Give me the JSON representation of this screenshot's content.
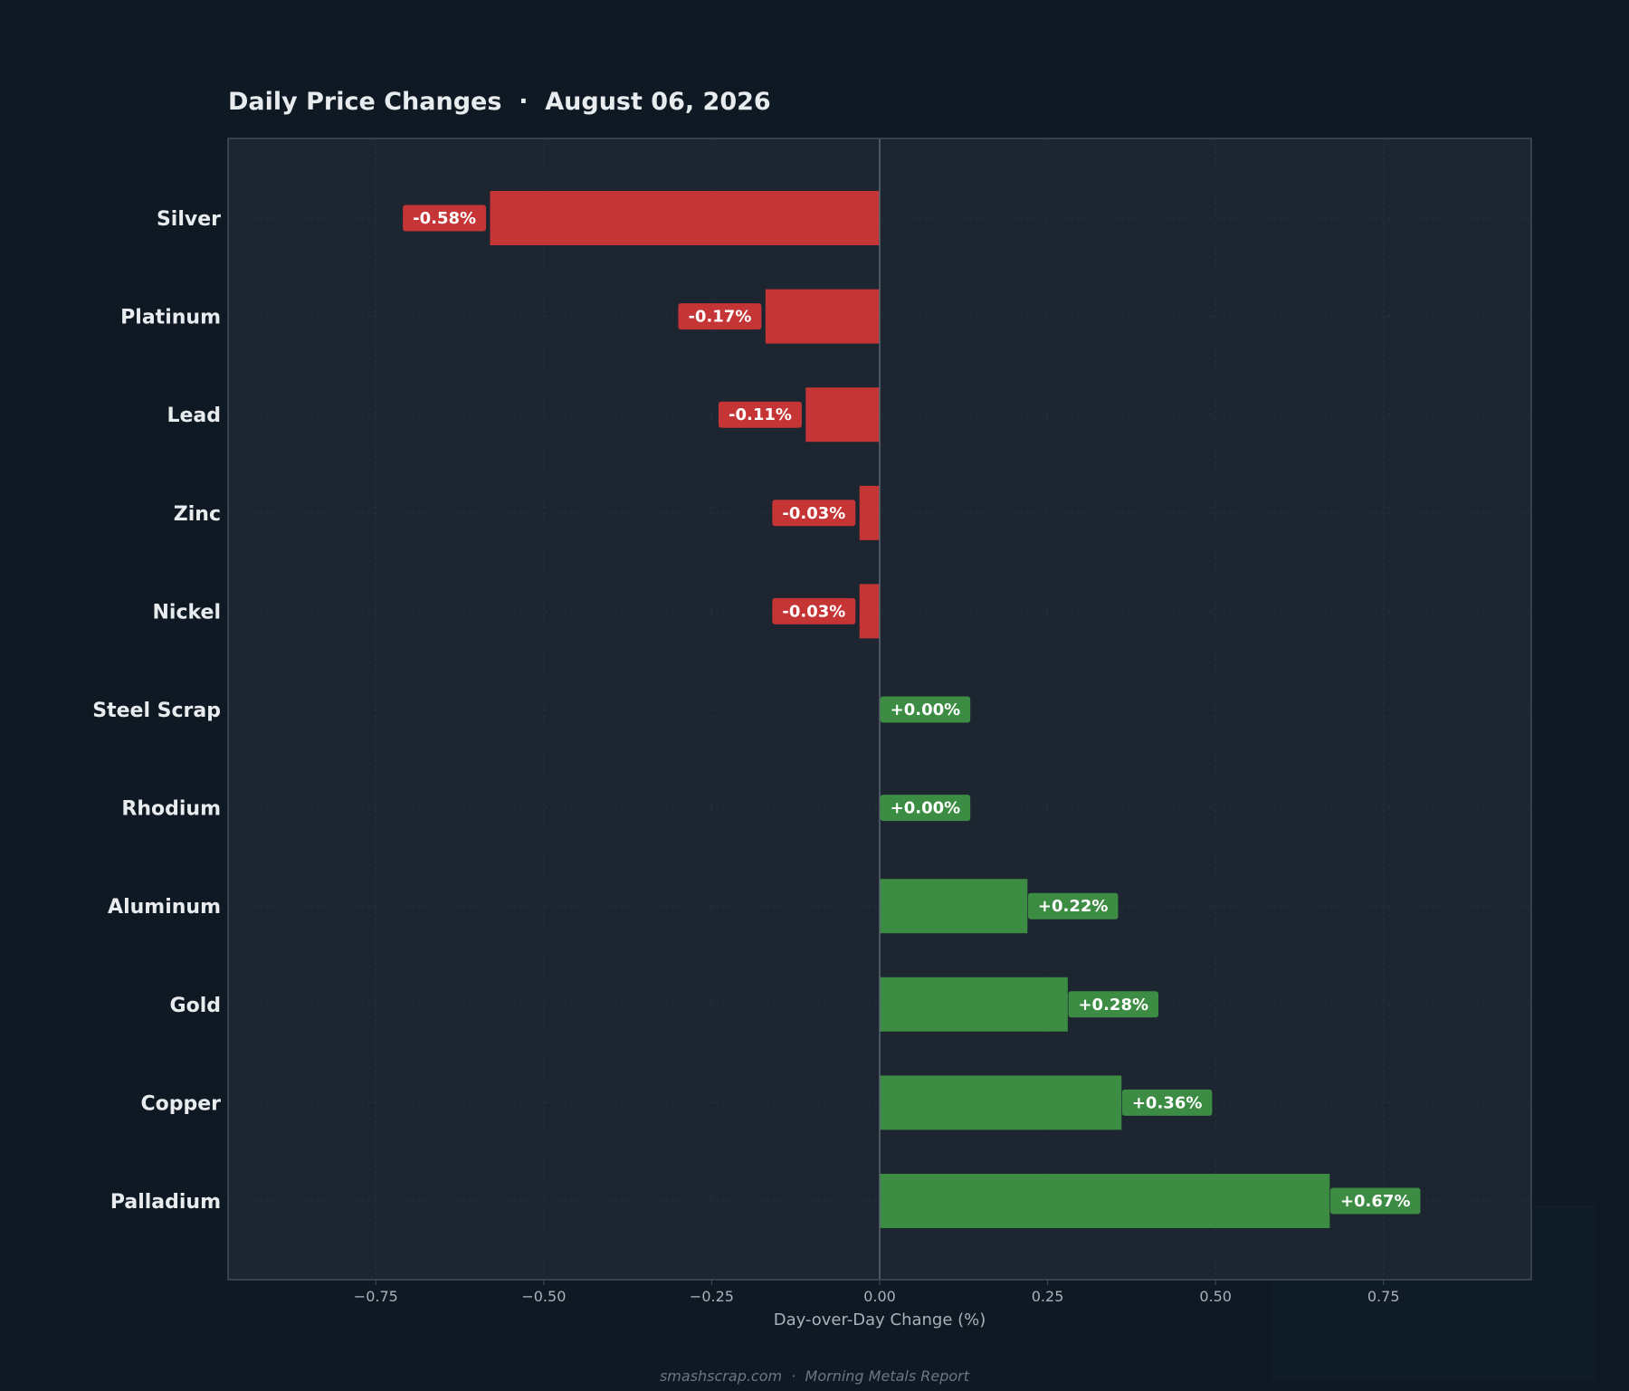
{
  "colors": {
    "background": "#0f1923",
    "plot_background": "#1c2530",
    "plot_border": "#3f4d5a",
    "negative": "#c53535",
    "positive": "#3c8c44",
    "title": "#e8ecef",
    "category_label": "#e8ecef",
    "tick_label": "#a8b2bc",
    "axis_label": "#a8b2bc",
    "footer": "#6a7682",
    "gridline": "#26313c",
    "zero_line": "#5a6874"
  },
  "chart_data": {
    "type": "bar",
    "orientation": "horizontal",
    "title": "Daily Price Changes  ·  August 06, 2026",
    "xlabel": "Day-over-Day Change (%)",
    "ylabel": "",
    "xlim": [
      -0.97,
      0.97
    ],
    "xticks": [
      -0.75,
      -0.5,
      -0.25,
      0.0,
      0.25,
      0.5,
      0.75
    ],
    "xtick_labels": [
      "−0.75",
      "−0.50",
      "−0.25",
      "0.00",
      "0.25",
      "0.50",
      "0.75"
    ],
    "grid": true,
    "categories": [
      "Silver",
      "Platinum",
      "Lead",
      "Zinc",
      "Nickel",
      "Steel Scrap",
      "Rhodium",
      "Aluminum",
      "Gold",
      "Copper",
      "Palladium"
    ],
    "values": [
      -0.58,
      -0.17,
      -0.11,
      -0.03,
      -0.03,
      0.0,
      0.0,
      0.22,
      0.28,
      0.36,
      0.67
    ],
    "data_labels": [
      "-0.58%",
      "-0.17%",
      "-0.11%",
      "-0.03%",
      "-0.03%",
      "+0.00%",
      "+0.00%",
      "+0.22%",
      "+0.28%",
      "+0.36%",
      "+0.67%"
    ]
  },
  "footer": "smashscrap.com  ·  Morning Metals Report"
}
